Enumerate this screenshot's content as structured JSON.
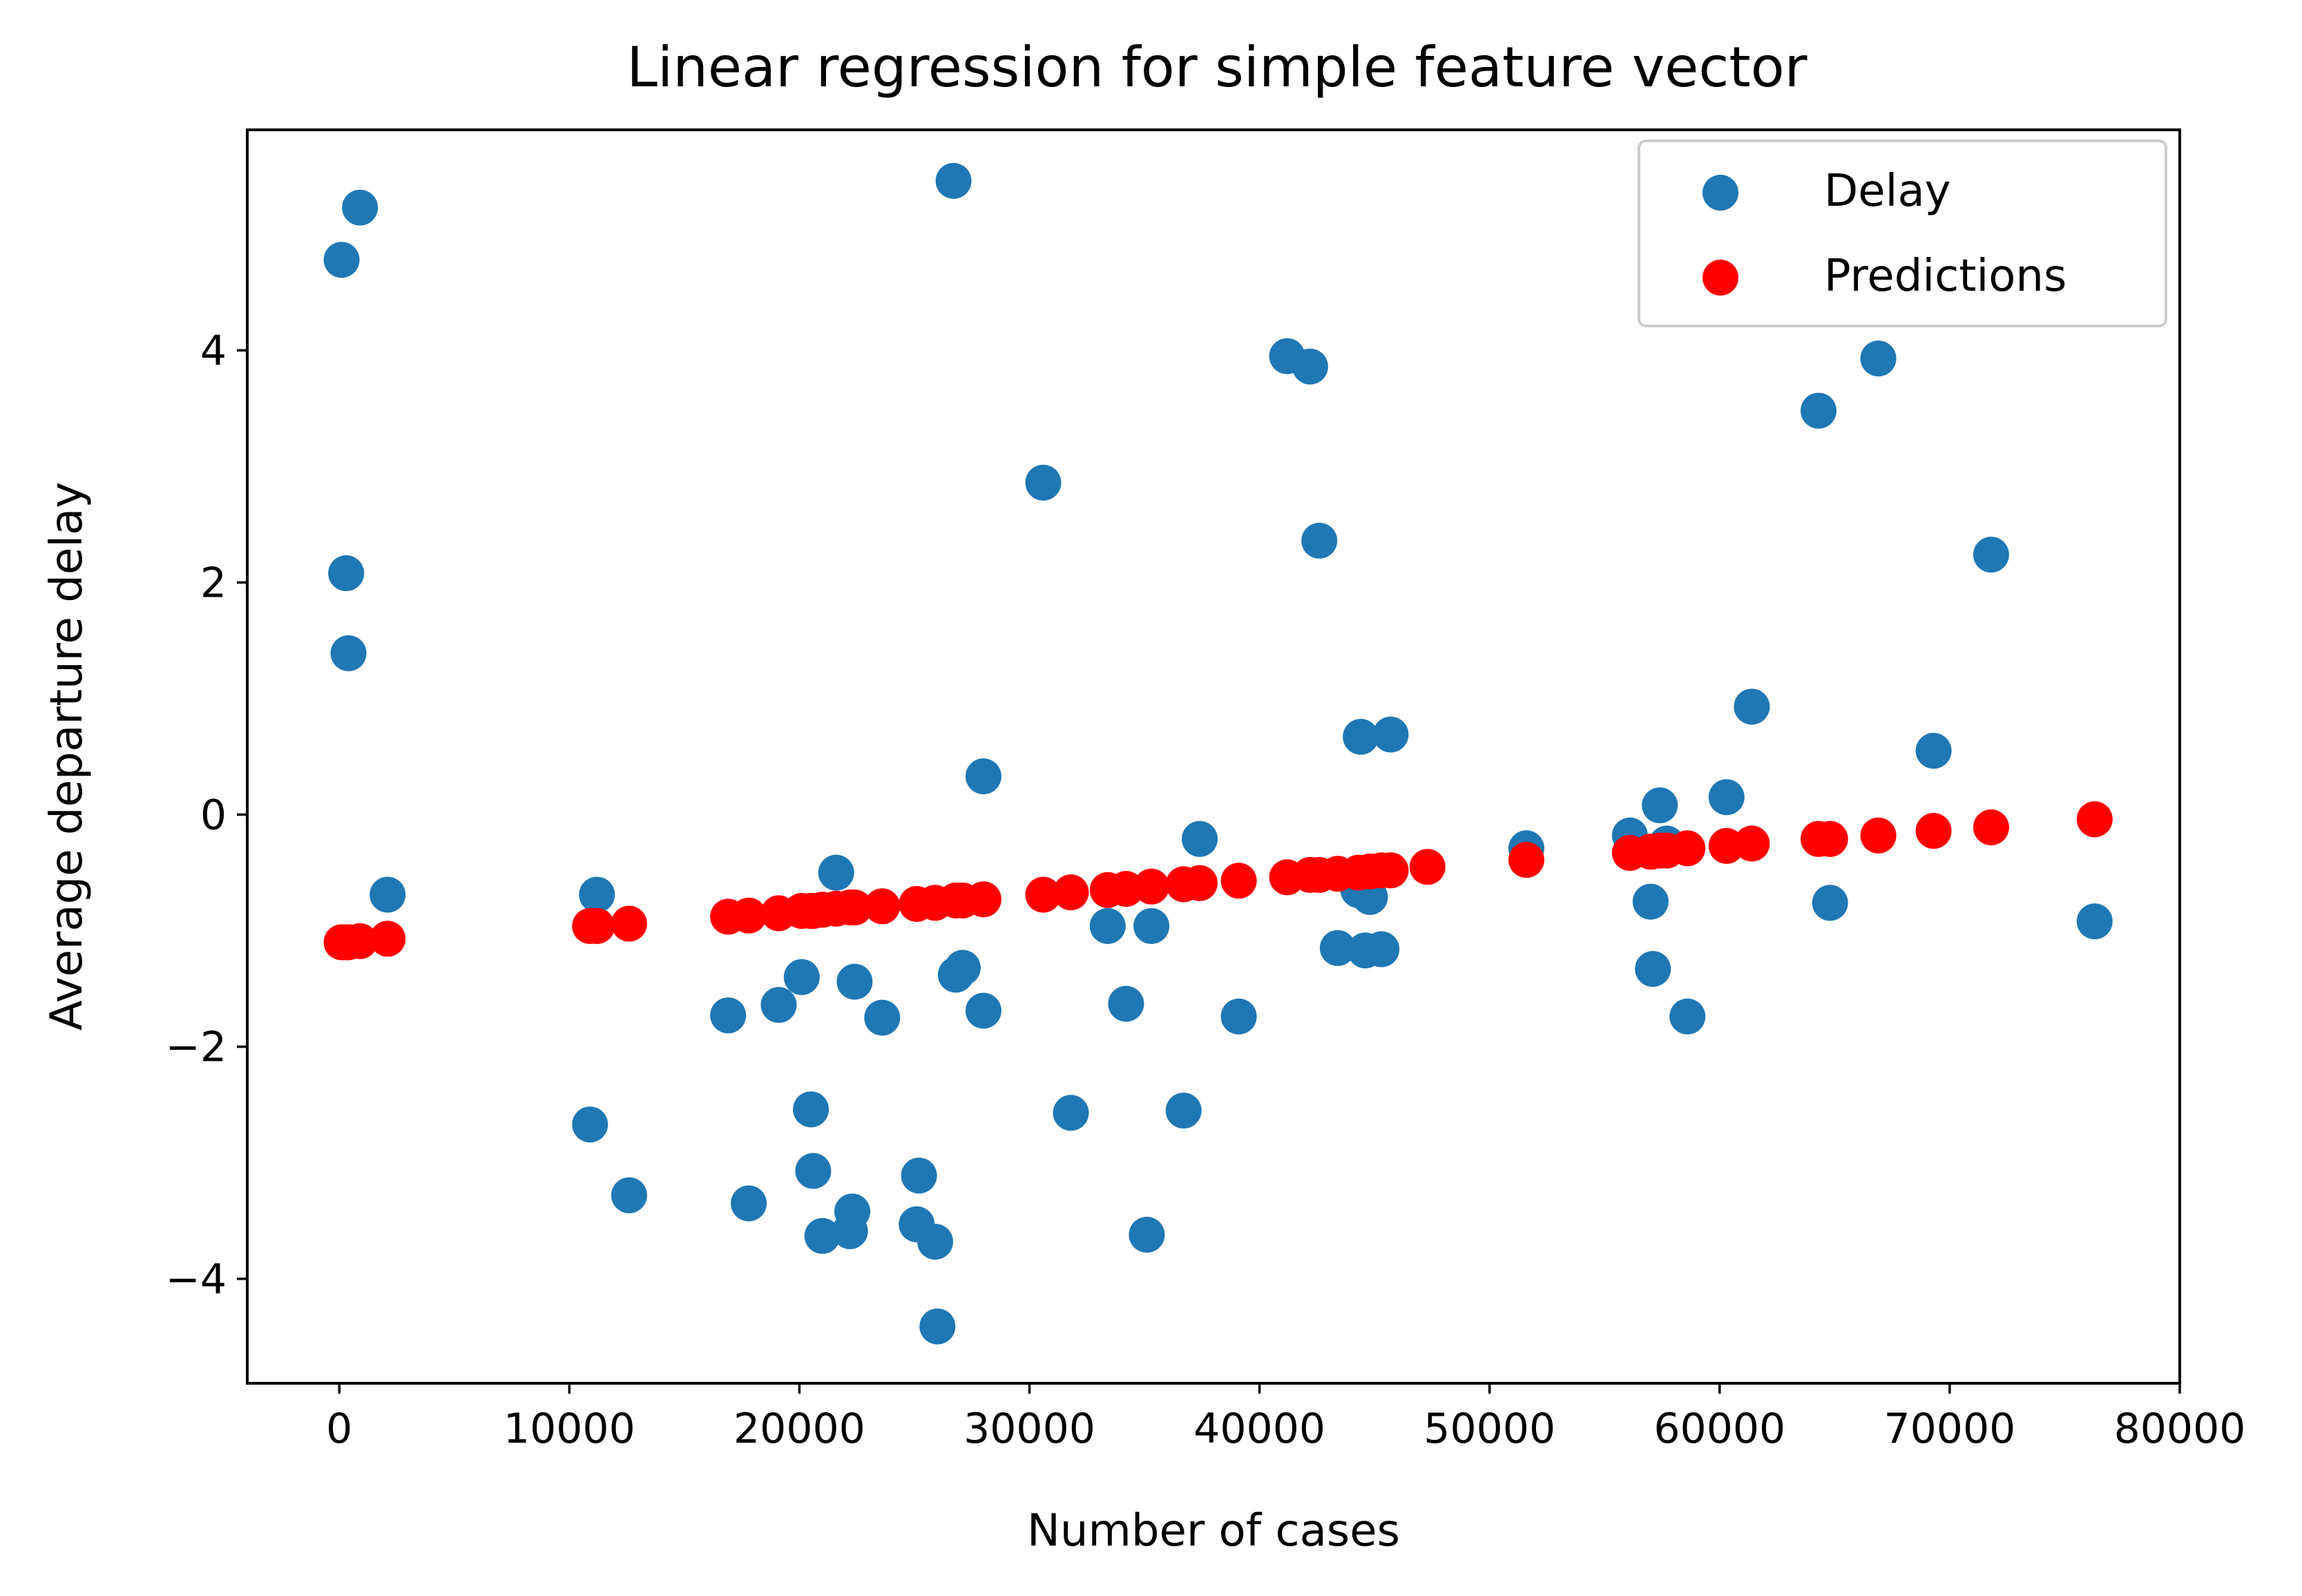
{
  "chart_data": {
    "type": "scatter",
    "title": "Linear regression for simple feature vector",
    "xlabel": "Number of cases",
    "ylabel": "Average departure delay",
    "xlim": [
      -4000,
      80000
    ],
    "ylim": [
      -4.9,
      5.9
    ],
    "xticks": [
      0,
      10000,
      20000,
      30000,
      40000,
      50000,
      60000,
      70000,
      80000
    ],
    "xtick_labels": [
      "0",
      "10000",
      "20000",
      "30000",
      "40000",
      "50000",
      "60000",
      "70000",
      "80000"
    ],
    "yticks": [
      -4,
      -2,
      0,
      2,
      4
    ],
    "ytick_labels": [
      "−4",
      "−2",
      "0",
      "2",
      "4"
    ],
    "grid": false,
    "legend": "top-right",
    "series": [
      {
        "name": "Delay",
        "color": "#1f77b4",
        "points": [
          [
            100,
            4.78
          ],
          [
            900,
            5.23
          ],
          [
            300,
            2.08
          ],
          [
            400,
            1.39
          ],
          [
            2100,
            -0.69
          ],
          [
            10900,
            -2.67
          ],
          [
            11200,
            -0.69
          ],
          [
            12600,
            -3.28
          ],
          [
            16900,
            -1.73
          ],
          [
            17800,
            -3.35
          ],
          [
            19100,
            -1.64
          ],
          [
            20100,
            -1.4
          ],
          [
            20500,
            -2.54
          ],
          [
            20600,
            -3.07
          ],
          [
            21000,
            -3.63
          ],
          [
            21600,
            -0.5
          ],
          [
            22200,
            -3.59
          ],
          [
            22300,
            -3.42
          ],
          [
            22400,
            -1.44
          ],
          [
            23600,
            -1.75
          ],
          [
            25200,
            -3.11
          ],
          [
            25100,
            -3.53
          ],
          [
            25900,
            -3.68
          ],
          [
            26000,
            -4.41
          ],
          [
            26700,
            5.46
          ],
          [
            26800,
            -1.38
          ],
          [
            27100,
            -1.32
          ],
          [
            28000,
            0.33
          ],
          [
            28000,
            -1.69
          ],
          [
            30600,
            2.86
          ],
          [
            31800,
            -2.57
          ],
          [
            33400,
            -0.96
          ],
          [
            34200,
            -1.63
          ],
          [
            35100,
            -3.62
          ],
          [
            35300,
            -0.96
          ],
          [
            36700,
            -2.55
          ],
          [
            37400,
            -0.21
          ],
          [
            39100,
            -1.74
          ],
          [
            41200,
            3.95
          ],
          [
            42200,
            3.86
          ],
          [
            42600,
            2.36
          ],
          [
            43400,
            -1.15
          ],
          [
            44300,
            -0.65
          ],
          [
            44400,
            0.67
          ],
          [
            44600,
            -1.17
          ],
          [
            44800,
            -0.71
          ],
          [
            45300,
            -1.16
          ],
          [
            45700,
            0.69
          ],
          [
            51600,
            -0.29
          ],
          [
            56100,
            -0.18
          ],
          [
            57000,
            -0.75
          ],
          [
            57100,
            -1.33
          ],
          [
            57400,
            0.08
          ],
          [
            57700,
            -0.25
          ],
          [
            58600,
            -1.74
          ],
          [
            60300,
            0.15
          ],
          [
            61400,
            0.93
          ],
          [
            64300,
            3.48
          ],
          [
            64800,
            -0.76
          ],
          [
            66900,
            3.93
          ],
          [
            69300,
            0.55
          ],
          [
            71800,
            2.24
          ],
          [
            76300,
            -0.92
          ]
        ]
      },
      {
        "name": "Predictions",
        "color": "#ff0000",
        "points": [
          [
            100,
            -1.1
          ],
          [
            300,
            -1.1
          ],
          [
            400,
            -1.1
          ],
          [
            900,
            -1.09
          ],
          [
            2100,
            -1.07
          ],
          [
            10900,
            -0.96
          ],
          [
            11200,
            -0.96
          ],
          [
            12600,
            -0.94
          ],
          [
            16900,
            -0.88
          ],
          [
            17800,
            -0.87
          ],
          [
            19100,
            -0.85
          ],
          [
            20100,
            -0.83
          ],
          [
            20500,
            -0.83
          ],
          [
            20600,
            -0.83
          ],
          [
            21000,
            -0.82
          ],
          [
            21600,
            -0.81
          ],
          [
            22200,
            -0.8
          ],
          [
            22400,
            -0.8
          ],
          [
            23600,
            -0.79
          ],
          [
            25100,
            -0.77
          ],
          [
            25900,
            -0.76
          ],
          [
            26800,
            -0.74
          ],
          [
            27100,
            -0.74
          ],
          [
            28000,
            -0.73
          ],
          [
            30600,
            -0.69
          ],
          [
            31800,
            -0.67
          ],
          [
            33400,
            -0.65
          ],
          [
            34200,
            -0.64
          ],
          [
            35300,
            -0.62
          ],
          [
            36700,
            -0.6
          ],
          [
            37400,
            -0.59
          ],
          [
            39100,
            -0.57
          ],
          [
            41200,
            -0.54
          ],
          [
            42200,
            -0.52
          ],
          [
            42600,
            -0.52
          ],
          [
            43400,
            -0.51
          ],
          [
            44300,
            -0.5
          ],
          [
            44800,
            -0.49
          ],
          [
            45300,
            -0.48
          ],
          [
            45700,
            -0.48
          ],
          [
            47300,
            -0.45
          ],
          [
            51600,
            -0.39
          ],
          [
            56100,
            -0.33
          ],
          [
            57000,
            -0.32
          ],
          [
            57400,
            -0.31
          ],
          [
            57700,
            -0.31
          ],
          [
            58600,
            -0.29
          ],
          [
            60300,
            -0.27
          ],
          [
            61400,
            -0.25
          ],
          [
            64300,
            -0.21
          ],
          [
            64800,
            -0.21
          ],
          [
            66900,
            -0.18
          ],
          [
            69300,
            -0.14
          ],
          [
            71800,
            -0.11
          ],
          [
            76300,
            -0.04
          ]
        ]
      }
    ]
  }
}
